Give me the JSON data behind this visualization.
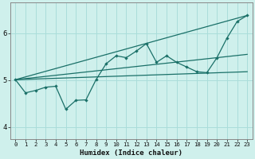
{
  "xlabel": "Humidex (Indice chaleur)",
  "bg_color": "#cff0ec",
  "grid_color": "#aaddda",
  "line_color": "#1a7068",
  "xlim": [
    -0.5,
    23.5
  ],
  "ylim": [
    3.75,
    6.65
  ],
  "xticks": [
    0,
    1,
    2,
    3,
    4,
    5,
    6,
    7,
    8,
    9,
    10,
    11,
    12,
    13,
    14,
    15,
    16,
    17,
    18,
    19,
    20,
    21,
    22,
    23
  ],
  "yticks": [
    4,
    5,
    6
  ],
  "line1_x": [
    0,
    1,
    2,
    3,
    4,
    5,
    6,
    7,
    8,
    9,
    10,
    11,
    12,
    13,
    14,
    15,
    16,
    17,
    18,
    19,
    20,
    21,
    22,
    23
  ],
  "line1_y": [
    5.01,
    4.73,
    4.78,
    4.85,
    4.87,
    4.38,
    4.57,
    4.58,
    5.01,
    5.35,
    5.52,
    5.48,
    5.62,
    5.78,
    5.38,
    5.52,
    5.38,
    5.28,
    5.18,
    5.16,
    5.48,
    5.9,
    6.25,
    6.38
  ],
  "line2_x": [
    0,
    23
  ],
  "line2_y": [
    5.01,
    6.38
  ],
  "line3_x": [
    0,
    23
  ],
  "line3_y": [
    5.01,
    5.55
  ],
  "line4_x": [
    0,
    23
  ],
  "line4_y": [
    5.01,
    5.18
  ]
}
